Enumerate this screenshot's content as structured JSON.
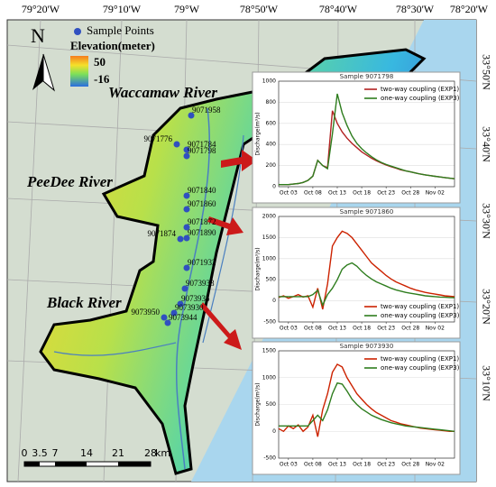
{
  "map": {
    "top_labels": [
      "79°20'W",
      "79°10'W",
      "79°W",
      "78°50'W",
      "78°40'W",
      "78°30'W",
      "78°20'W"
    ],
    "right_labels": [
      "33°50'N",
      "33°40'N",
      "33°30'N",
      "33°20'N",
      "33°10'N"
    ],
    "north": "N",
    "legend": {
      "points": "Sample Points",
      "elevation_title": "Elevation(meter)",
      "high": "50",
      "low": "-16"
    },
    "rivers": [
      "Waccamaw River",
      "PeeDee River",
      "Black River"
    ],
    "sample_points": [
      "9071958",
      "9071776",
      "9071784",
      "9071798",
      "9071840",
      "9071860",
      "9071872",
      "9071874",
      "9071890",
      "9071932",
      "9073938",
      "9073935",
      "9073930",
      "9073950",
      "9073944"
    ],
    "scale_bar": [
      "0",
      "3.5",
      "7",
      "14",
      "21",
      "28",
      "km"
    ]
  },
  "chart_data": [
    {
      "type": "line",
      "title": "Sample 9071798",
      "y_label": "Discharge(m³/s)",
      "categories": [
        null,
        null,
        "Oct 03",
        null,
        null,
        null,
        null,
        "Oct 08",
        null,
        null,
        null,
        null,
        "Oct 13",
        null,
        null,
        null,
        null,
        "Oct 18",
        null,
        null,
        null,
        null,
        "Oct 23",
        null,
        null,
        null,
        null,
        "Oct 28",
        null,
        null,
        null,
        null,
        "Nov 02",
        null,
        null,
        null,
        null
      ],
      "ylim": [
        0,
        1000
      ],
      "yticks": [
        0,
        200,
        400,
        600,
        800,
        1000
      ],
      "grid": true,
      "legend": "upper right",
      "series": [
        {
          "name": "two-way coupling (EXP1)",
          "color": "#b22222",
          "values": [
            20,
            20,
            20,
            25,
            30,
            40,
            60,
            100,
            250,
            200,
            180,
            720,
            600,
            520,
            460,
            410,
            370,
            330,
            300,
            270,
            245,
            225,
            205,
            190,
            175,
            160,
            150,
            140,
            130,
            120,
            112,
            105,
            98,
            92,
            86,
            80,
            75
          ]
        },
        {
          "name": "one-way coupling (EXP3)",
          "color": "#2e7d1e",
          "values": [
            20,
            20,
            20,
            25,
            30,
            40,
            60,
            100,
            250,
            200,
            170,
            500,
            880,
            700,
            580,
            480,
            410,
            360,
            320,
            285,
            255,
            230,
            210,
            195,
            180,
            165,
            150,
            140,
            130,
            120,
            112,
            105,
            98,
            92,
            86,
            80,
            75
          ]
        }
      ]
    },
    {
      "type": "line",
      "title": "Sample 9071860",
      "y_label": "Discharge(m³/s)",
      "categories": [
        null,
        null,
        "Oct 03",
        null,
        null,
        null,
        null,
        "Oct 08",
        null,
        null,
        null,
        null,
        "Oct 13",
        null,
        null,
        null,
        null,
        "Oct 18",
        null,
        null,
        null,
        null,
        "Oct 23",
        null,
        null,
        null,
        null,
        "Oct 28",
        null,
        null,
        null,
        null,
        "Nov 02",
        null,
        null,
        null,
        null
      ],
      "ylim": [
        -500,
        2000
      ],
      "yticks": [
        -500,
        0,
        500,
        1000,
        1500,
        2000
      ],
      "grid": true,
      "legend": "lower right",
      "series": [
        {
          "name": "two-way coupling (EXP1)",
          "color": "#cc2200",
          "values": [
            80,
            120,
            60,
            100,
            150,
            90,
            120,
            -150,
            300,
            -200,
            400,
            1300,
            1500,
            1650,
            1600,
            1500,
            1350,
            1200,
            1050,
            900,
            800,
            700,
            600,
            520,
            450,
            400,
            350,
            300,
            260,
            230,
            200,
            180,
            160,
            140,
            120,
            110,
            100
          ]
        },
        {
          "name": "one-way coupling (EXP3)",
          "color": "#2e7d1e",
          "values": [
            100,
            100,
            100,
            100,
            100,
            100,
            100,
            150,
            250,
            -100,
            150,
            300,
            500,
            750,
            850,
            900,
            820,
            700,
            600,
            520,
            450,
            400,
            350,
            300,
            260,
            230,
            200,
            180,
            160,
            140,
            120,
            110,
            100,
            90,
            85,
            80,
            75
          ]
        }
      ]
    },
    {
      "type": "line",
      "title": "Sample 9073930",
      "y_label": "Discharge(m³/s)",
      "categories": [
        null,
        null,
        "Oct 03",
        null,
        null,
        null,
        null,
        "Oct 08",
        null,
        null,
        null,
        null,
        "Oct 13",
        null,
        null,
        null,
        null,
        "Oct 18",
        null,
        null,
        null,
        null,
        "Oct 23",
        null,
        null,
        null,
        null,
        "Oct 28",
        null,
        null,
        null,
        null,
        "Nov 02",
        null,
        null,
        null,
        null
      ],
      "ylim": [
        -500,
        1500
      ],
      "yticks": [
        -500,
        0,
        500,
        1000,
        1500
      ],
      "grid": true,
      "legend": "upper right",
      "series": [
        {
          "name": "two-way coupling (EXP1)",
          "color": "#cc2200",
          "values": [
            50,
            0,
            100,
            50,
            120,
            0,
            80,
            300,
            -100,
            400,
            700,
            1100,
            1250,
            1200,
            1000,
            850,
            700,
            600,
            500,
            420,
            350,
            300,
            250,
            200,
            170,
            140,
            120,
            100,
            80,
            60,
            50,
            40,
            30,
            20,
            10,
            0,
            0
          ]
        },
        {
          "name": "one-way coupling (EXP3)",
          "color": "#2e7d1e",
          "values": [
            100,
            100,
            100,
            100,
            100,
            100,
            100,
            200,
            300,
            200,
            400,
            700,
            900,
            880,
            750,
            600,
            500,
            420,
            360,
            300,
            260,
            220,
            190,
            160,
            140,
            120,
            100,
            90,
            80,
            70,
            60,
            50,
            40,
            30,
            20,
            10,
            0
          ]
        }
      ]
    }
  ]
}
